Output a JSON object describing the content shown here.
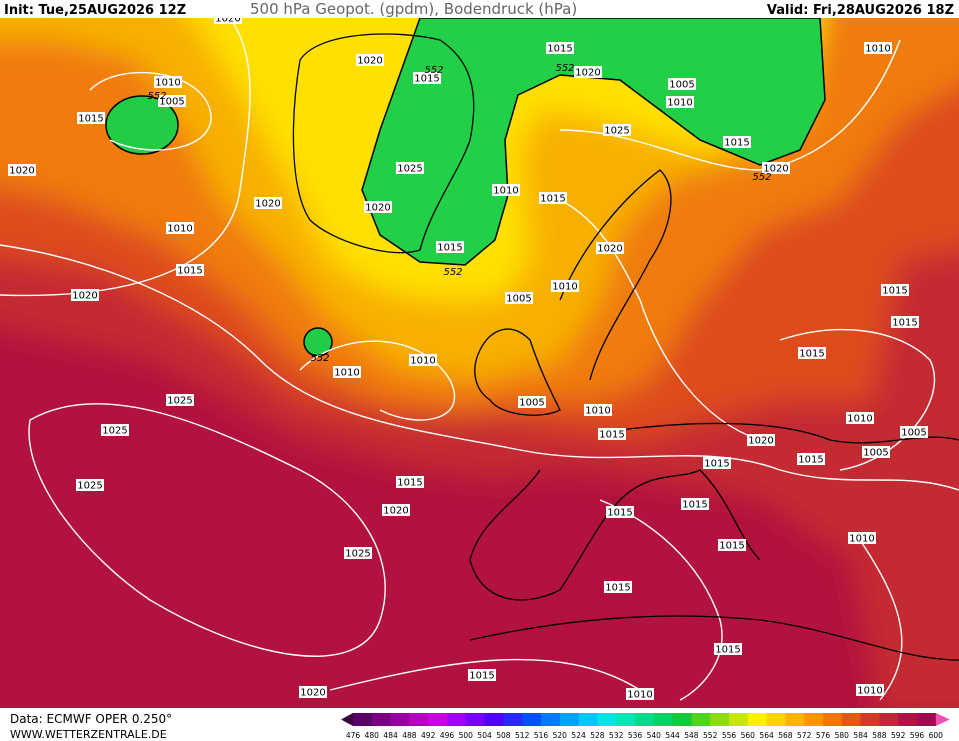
{
  "header": {
    "init": "Init: Tue,25AUG2026 12Z",
    "title": "500 hPa Geopot. (gpdm), Bodendruck (hPa)",
    "valid": "Valid: Fri,28AUG2026 18Z"
  },
  "footer": {
    "source": "Data: ECMWF OPER 0.250°",
    "site": "WWW.WETTERZENTRALE.DE"
  },
  "isobar_labels": [
    "1020",
    "1010",
    "1005",
    "1015",
    "1020",
    "1020",
    "1010",
    "1015",
    "1020",
    "1025",
    "1025",
    "1025",
    "1020",
    "1015",
    "1025",
    "1020",
    "1020",
    "1015",
    "1015",
    "1020",
    "1005",
    "1010",
    "1010",
    "1025",
    "1015",
    "1020",
    "1025",
    "1020",
    "1010",
    "1015",
    "1015",
    "1020",
    "1010",
    "1005",
    "1010",
    "1010",
    "1005",
    "1010",
    "1015",
    "1020",
    "1015",
    "1015",
    "1015",
    "1015",
    "1010",
    "1005",
    "1005",
    "1015",
    "1015",
    "1015",
    "1015",
    "1010",
    "1015",
    "1015",
    "1015",
    "1010",
    "1010"
  ],
  "contour_labels": [
    "552",
    "552",
    "552",
    "552",
    "552",
    "552"
  ],
  "scale": {
    "labels": [
      476,
      480,
      484,
      488,
      492,
      496,
      500,
      504,
      508,
      512,
      516,
      520,
      524,
      528,
      532,
      536,
      540,
      544,
      548,
      552,
      556,
      560,
      564,
      568,
      572,
      576,
      580,
      584,
      588,
      592,
      596,
      600
    ],
    "colors": [
      "#3c003c",
      "#5a0064",
      "#780082",
      "#9600a0",
      "#b400be",
      "#c800dc",
      "#a000f0",
      "#7800ff",
      "#5000ff",
      "#2828ff",
      "#0050ff",
      "#0078ff",
      "#00a0ff",
      "#00c8ff",
      "#00e6e6",
      "#00e6b4",
      "#00dc8c",
      "#00d264",
      "#14c83c",
      "#50d21e",
      "#8cdc14",
      "#c8e60a",
      "#fff000",
      "#ffd200",
      "#ffb400",
      "#ff9600",
      "#f07800",
      "#e05a14",
      "#d03c28",
      "#c0283c",
      "#b01446",
      "#a00a50",
      "#f050b4"
    ]
  }
}
